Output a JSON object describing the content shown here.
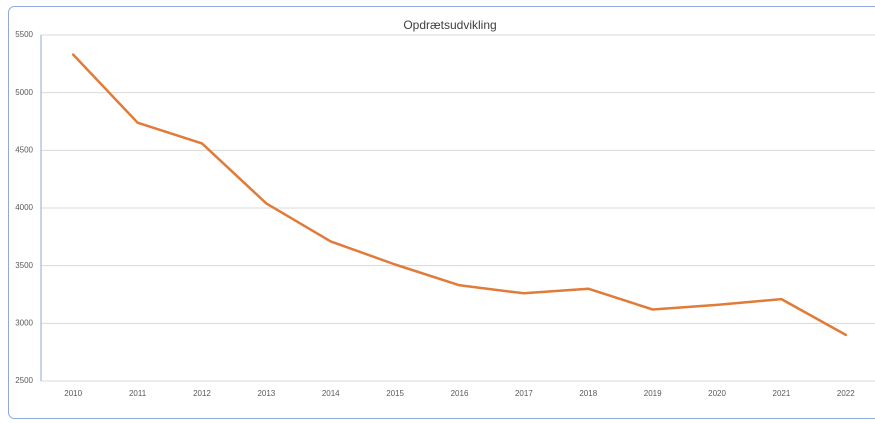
{
  "chart_data": {
    "type": "line",
    "title": "Opdrætsudvikling",
    "categories": [
      "2010",
      "2011",
      "2012",
      "2013",
      "2014",
      "2015",
      "2016",
      "2017",
      "2018",
      "2019",
      "2020",
      "2021",
      "2022"
    ],
    "series": [
      {
        "name": "Opdrætsudvikling",
        "color": "#e07b39",
        "values": [
          5330,
          4740,
          4560,
          4040,
          3710,
          3510,
          3330,
          3260,
          3300,
          3120,
          3160,
          3210,
          2900
        ]
      }
    ],
    "ylim": [
      2500,
      5500
    ],
    "yticks": [
      2500,
      3000,
      3500,
      4000,
      4500,
      5000,
      5500
    ],
    "grid": true
  }
}
